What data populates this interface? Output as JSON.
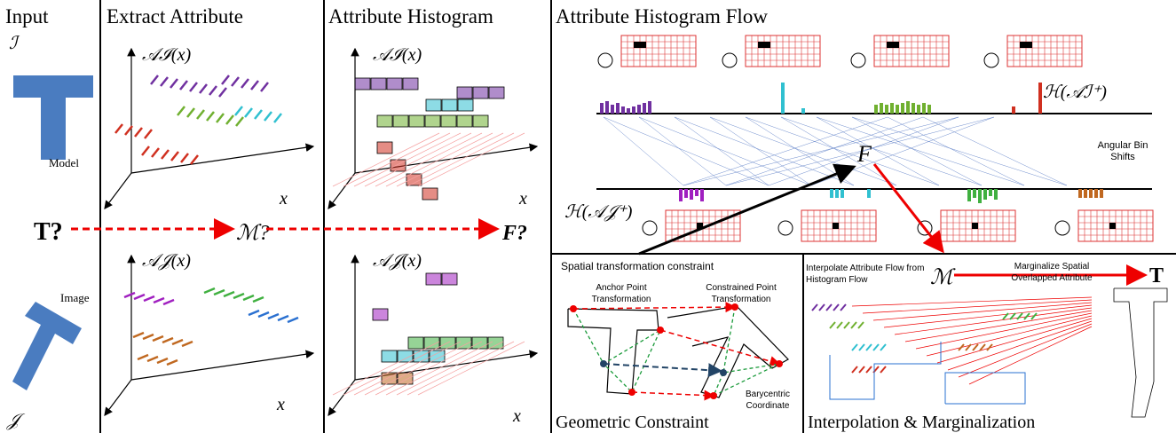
{
  "panels": {
    "input": {
      "title": "Input",
      "source": "ℐ",
      "target": "𝒥",
      "model": "Model",
      "image": "Image",
      "query": "T?"
    },
    "extract": {
      "title": "Extract Attribute",
      "top_axis": "𝒜ℐ(x)",
      "bottom_axis": "𝒜𝒥(x)",
      "top_x": "x",
      "bottom_x": "x",
      "query": "ℳ?"
    },
    "histogram": {
      "title": "Attribute Histogram",
      "top_axis": "𝒜ℐ(x)",
      "bottom_axis": "𝒜𝒥(x)",
      "top_x": "x",
      "bottom_x": "x",
      "query": "F?"
    },
    "flow": {
      "title": "Attribute Histogram Flow",
      "top_hist": "ℋ(𝒜ℐ⁺)",
      "bottom_hist": "ℋ(𝒜𝒥⁺)",
      "shift_label": "Angular Bin Shifts",
      "flow": "F"
    },
    "geometric": {
      "title": "Geometric Constraint",
      "heading": "Spatial transformation constraint",
      "anchor": "Anchor Point Transformation",
      "constrained": "Constrained Point Transformation",
      "barycentric": "Barycentric Coordinate"
    },
    "interpolation": {
      "title": "Interpolation & Marginalization",
      "interpolate": "Interpolate Attribute Flow from Histogram Flow",
      "mapping": "ℳ",
      "marginalize": "Marginalize Spatial Overlapped Attribute",
      "result": "T"
    }
  }
}
